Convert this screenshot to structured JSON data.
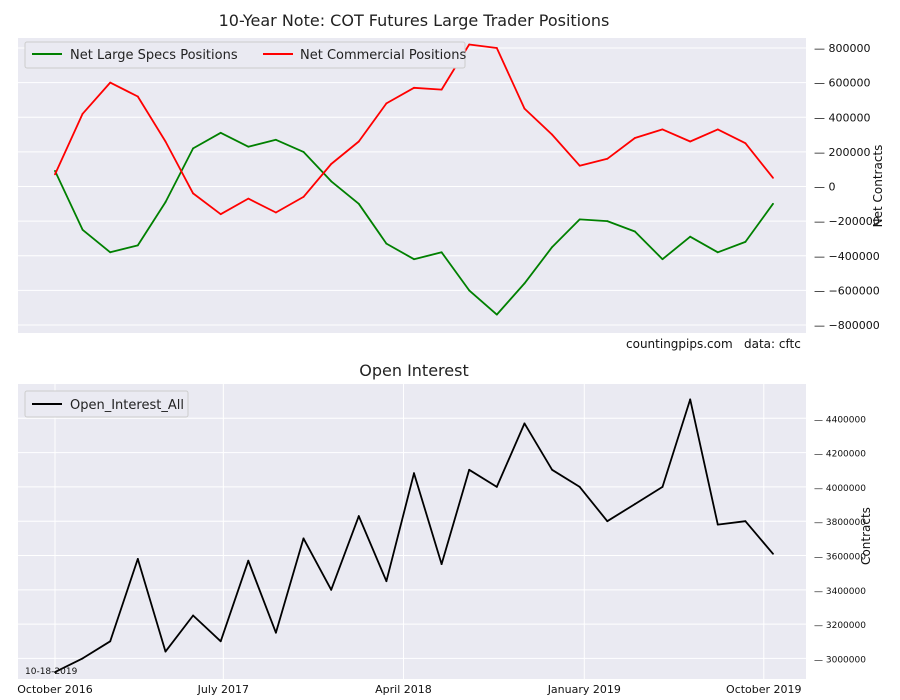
{
  "chart_data": [
    {
      "type": "line",
      "title": "10-Year Note: COT Futures Large Trader Positions",
      "xlabel": "",
      "ylabel": "Net Contracts",
      "ylim": [
        -800000,
        800000
      ],
      "yticks": [
        800000,
        600000,
        400000,
        200000,
        0,
        -200000,
        -400000,
        -600000,
        -800000
      ],
      "ytick_labels": [
        "800000",
        "600000",
        "400000",
        "200000",
        "0",
        "−200000",
        "−400000",
        "−600000",
        "−800000"
      ],
      "legend_position": "top-left",
      "grid": true,
      "annotations": [
        "countingpips.com",
        "data: cftc"
      ],
      "series": [
        {
          "name": "Net Large Specs Positions",
          "color": "#008000",
          "x": [
            "2016-10-18",
            "2016-11-29",
            "2017-01-10",
            "2017-02-21",
            "2017-04-04",
            "2017-05-16",
            "2017-06-27",
            "2017-08-08",
            "2017-09-19",
            "2017-10-31",
            "2017-12-12",
            "2018-01-23",
            "2018-03-06",
            "2018-04-17",
            "2018-05-29",
            "2018-07-10",
            "2018-08-21",
            "2018-10-02",
            "2018-11-13",
            "2018-12-25",
            "2019-02-05",
            "2019-03-19",
            "2019-04-30",
            "2019-06-11",
            "2019-07-23",
            "2019-09-03",
            "2019-10-15"
          ],
          "values": [
            90000,
            -250000,
            -380000,
            -340000,
            -90000,
            220000,
            310000,
            230000,
            270000,
            200000,
            30000,
            -100000,
            -330000,
            -420000,
            -380000,
            -600000,
            -740000,
            -560000,
            -350000,
            -190000,
            -200000,
            -260000,
            -420000,
            -290000,
            -380000,
            -320000,
            -100000
          ]
        },
        {
          "name": "Net Commercial Positions",
          "color": "#ff0000",
          "x": [
            "2016-10-18",
            "2016-11-29",
            "2017-01-10",
            "2017-02-21",
            "2017-04-04",
            "2017-05-16",
            "2017-06-27",
            "2017-08-08",
            "2017-09-19",
            "2017-10-31",
            "2017-12-12",
            "2018-01-23",
            "2018-03-06",
            "2018-04-17",
            "2018-05-29",
            "2018-07-10",
            "2018-08-21",
            "2018-10-02",
            "2018-11-13",
            "2018-12-25",
            "2019-02-05",
            "2019-03-19",
            "2019-04-30",
            "2019-06-11",
            "2019-07-23",
            "2019-09-03",
            "2019-10-15"
          ],
          "values": [
            70000,
            420000,
            600000,
            520000,
            260000,
            -40000,
            -160000,
            -70000,
            -150000,
            -60000,
            130000,
            260000,
            480000,
            570000,
            560000,
            820000,
            800000,
            450000,
            300000,
            120000,
            160000,
            280000,
            330000,
            260000,
            330000,
            250000,
            50000
          ]
        }
      ]
    },
    {
      "type": "line",
      "title": "Open Interest",
      "xlabel": "",
      "ylabel": "Contracts",
      "ylim": [
        2880000,
        4600000
      ],
      "yticks": [
        3000000,
        3200000,
        3400000,
        3600000,
        3800000,
        4000000,
        4200000,
        4400000
      ],
      "legend_position": "top-left",
      "grid": true,
      "x_tick_labels": [
        "October 2016",
        "July 2017",
        "April 2018",
        "January 2019",
        "October 2019"
      ],
      "x_ticks": [
        "2016-10-18",
        "2017-07-01",
        "2018-04-01",
        "2019-01-01",
        "2019-10-01"
      ],
      "annotations": [
        "10-18-2019"
      ],
      "series": [
        {
          "name": "Open_Interest_All",
          "color": "#000000",
          "x": [
            "2016-10-18",
            "2016-11-29",
            "2017-01-10",
            "2017-02-21",
            "2017-04-04",
            "2017-05-16",
            "2017-06-27",
            "2017-08-08",
            "2017-09-19",
            "2017-10-31",
            "2017-12-12",
            "2018-01-23",
            "2018-03-06",
            "2018-04-17",
            "2018-05-29",
            "2018-07-10",
            "2018-08-21",
            "2018-10-02",
            "2018-11-13",
            "2018-12-25",
            "2019-02-05",
            "2019-03-19",
            "2019-04-30",
            "2019-06-11",
            "2019-07-23",
            "2019-09-03",
            "2019-10-15"
          ],
          "values": [
            2920000,
            3000000,
            3100000,
            3580000,
            3040000,
            3250000,
            3100000,
            3570000,
            3150000,
            3700000,
            3400000,
            3830000,
            3450000,
            4080000,
            3550000,
            4100000,
            4000000,
            4370000,
            4100000,
            4000000,
            3800000,
            3900000,
            4000000,
            4510000,
            3780000,
            3800000,
            3610000
          ]
        }
      ]
    }
  ]
}
